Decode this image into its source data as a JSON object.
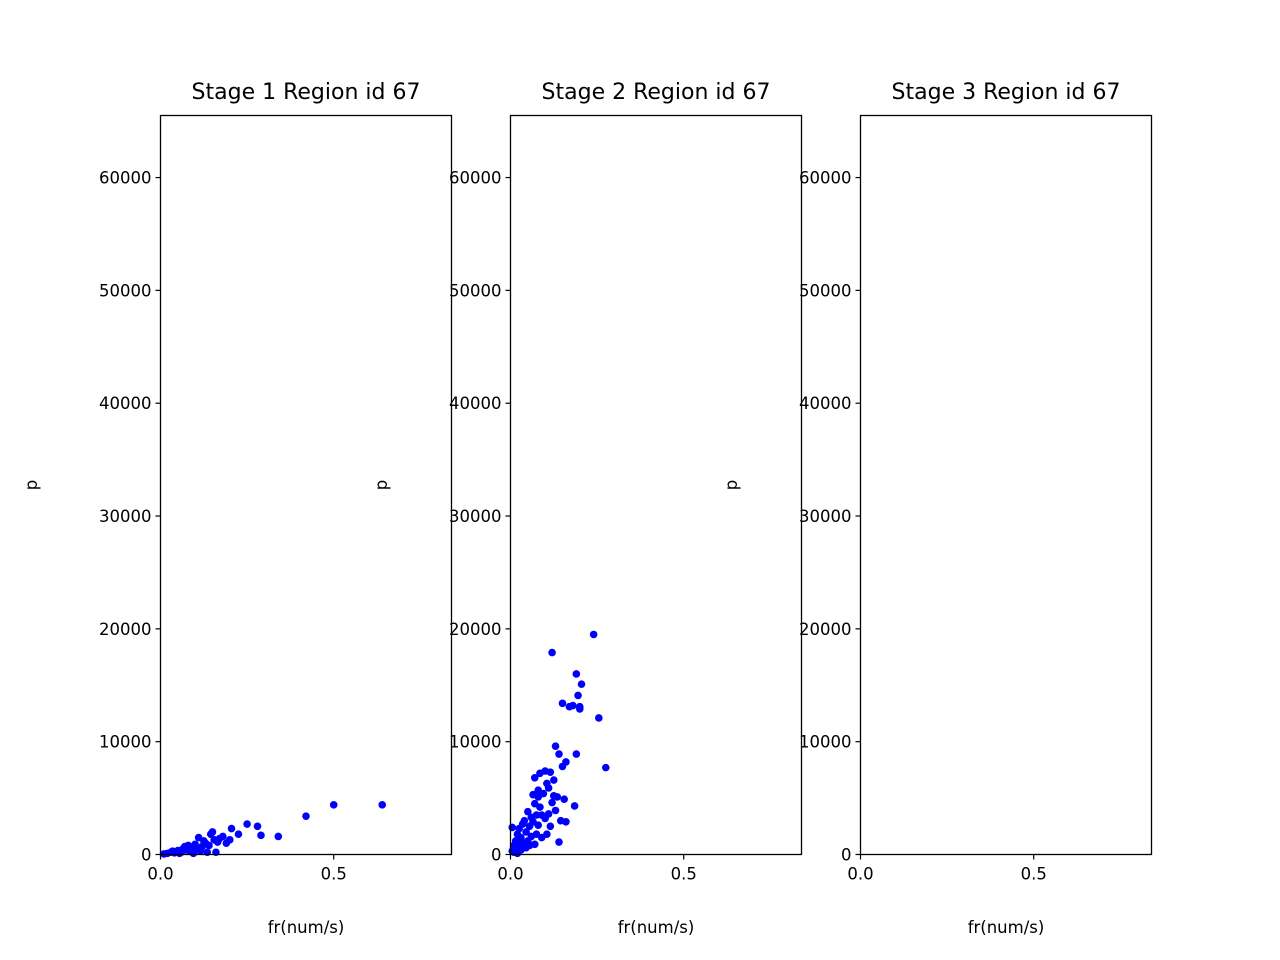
{
  "chart_data": [
    {
      "type": "scatter",
      "title": "Stage 1 Region id 67",
      "xlabel": "fr(num/s)",
      "ylabel": "p",
      "xlim": [
        0,
        0.84
      ],
      "ylim": [
        0,
        65500
      ],
      "xticks": [
        "0.0",
        "0.5"
      ],
      "yticks": [
        "0",
        "10000",
        "20000",
        "30000",
        "40000",
        "50000",
        "60000"
      ],
      "xtick_values": [
        0.0,
        0.5
      ],
      "ytick_values": [
        0,
        10000,
        20000,
        30000,
        40000,
        50000,
        60000
      ],
      "grid": false,
      "marker_color": "#0000ff",
      "points": [
        [
          0.01,
          50
        ],
        [
          0.02,
          100
        ],
        [
          0.03,
          200
        ],
        [
          0.035,
          300
        ],
        [
          0.04,
          150
        ],
        [
          0.045,
          250
        ],
        [
          0.05,
          350
        ],
        [
          0.055,
          100
        ],
        [
          0.06,
          200
        ],
        [
          0.065,
          500
        ],
        [
          0.07,
          700
        ],
        [
          0.075,
          400
        ],
        [
          0.08,
          800
        ],
        [
          0.085,
          300
        ],
        [
          0.09,
          600
        ],
        [
          0.095,
          100
        ],
        [
          0.1,
          900
        ],
        [
          0.105,
          500
        ],
        [
          0.11,
          1500
        ],
        [
          0.115,
          300
        ],
        [
          0.12,
          700
        ],
        [
          0.125,
          1200
        ],
        [
          0.13,
          1000
        ],
        [
          0.135,
          200
        ],
        [
          0.14,
          800
        ],
        [
          0.145,
          1800
        ],
        [
          0.15,
          2000
        ],
        [
          0.155,
          1300
        ],
        [
          0.16,
          200
        ],
        [
          0.165,
          1100
        ],
        [
          0.17,
          1400
        ],
        [
          0.18,
          1600
        ],
        [
          0.19,
          1000
        ],
        [
          0.2,
          1300
        ],
        [
          0.205,
          2300
        ],
        [
          0.225,
          1800
        ],
        [
          0.25,
          2700
        ],
        [
          0.28,
          2500
        ],
        [
          0.29,
          1700
        ],
        [
          0.34,
          1600
        ],
        [
          0.42,
          3400
        ],
        [
          0.5,
          4400
        ],
        [
          0.64,
          4400
        ]
      ]
    },
    {
      "type": "scatter",
      "title": "Stage 2 Region id 67",
      "xlabel": "fr(num/s)",
      "ylabel": "p",
      "xlim": [
        0,
        0.84
      ],
      "ylim": [
        0,
        65500
      ],
      "xticks": [
        "0.0",
        "0.5"
      ],
      "yticks": [
        "0",
        "10000",
        "20000",
        "30000",
        "40000",
        "50000",
        "60000"
      ],
      "xtick_values": [
        0.0,
        0.5
      ],
      "ytick_values": [
        0,
        10000,
        20000,
        30000,
        40000,
        50000,
        60000
      ],
      "grid": false,
      "marker_color": "#0000ff",
      "points": [
        [
          0.005,
          2400
        ],
        [
          0.005,
          300
        ],
        [
          0.01,
          800
        ],
        [
          0.01,
          200
        ],
        [
          0.015,
          1200
        ],
        [
          0.015,
          500
        ],
        [
          0.02,
          1800
        ],
        [
          0.02,
          100
        ],
        [
          0.025,
          900
        ],
        [
          0.025,
          2300
        ],
        [
          0.03,
          1500
        ],
        [
          0.03,
          400
        ],
        [
          0.035,
          2700
        ],
        [
          0.035,
          700
        ],
        [
          0.04,
          1000
        ],
        [
          0.04,
          3000
        ],
        [
          0.045,
          2000
        ],
        [
          0.045,
          600
        ],
        [
          0.05,
          3800
        ],
        [
          0.05,
          1200
        ],
        [
          0.055,
          2500
        ],
        [
          0.055,
          800
        ],
        [
          0.06,
          3300
        ],
        [
          0.06,
          1600
        ],
        [
          0.065,
          2900
        ],
        [
          0.065,
          5300
        ],
        [
          0.07,
          4500
        ],
        [
          0.07,
          900
        ],
        [
          0.07,
          6800
        ],
        [
          0.075,
          3500
        ],
        [
          0.075,
          1800
        ],
        [
          0.08,
          5100
        ],
        [
          0.08,
          5700
        ],
        [
          0.08,
          2600
        ],
        [
          0.085,
          4200
        ],
        [
          0.085,
          7200
        ],
        [
          0.09,
          3500
        ],
        [
          0.09,
          1500
        ],
        [
          0.095,
          5400
        ],
        [
          0.1,
          3200
        ],
        [
          0.1,
          7400
        ],
        [
          0.105,
          1800
        ],
        [
          0.105,
          6300
        ],
        [
          0.11,
          5900
        ],
        [
          0.11,
          3600
        ],
        [
          0.115,
          7300
        ],
        [
          0.115,
          2500
        ],
        [
          0.12,
          4600
        ],
        [
          0.12,
          17900
        ],
        [
          0.125,
          5200
        ],
        [
          0.125,
          6600
        ],
        [
          0.13,
          9600
        ],
        [
          0.13,
          3900
        ],
        [
          0.135,
          5100
        ],
        [
          0.14,
          1100
        ],
        [
          0.14,
          8900
        ],
        [
          0.145,
          3000
        ],
        [
          0.15,
          7800
        ],
        [
          0.15,
          13400
        ],
        [
          0.155,
          4900
        ],
        [
          0.16,
          8200
        ],
        [
          0.16,
          2900
        ],
        [
          0.17,
          13100
        ],
        [
          0.18,
          13200
        ],
        [
          0.185,
          4300
        ],
        [
          0.19,
          16000
        ],
        [
          0.19,
          8900
        ],
        [
          0.195,
          14100
        ],
        [
          0.2,
          13100
        ],
        [
          0.2,
          12900
        ],
        [
          0.205,
          15100
        ],
        [
          0.24,
          19500
        ],
        [
          0.255,
          12100
        ],
        [
          0.275,
          7700
        ]
      ]
    },
    {
      "type": "scatter",
      "title": "Stage 3 Region id 67",
      "xlabel": "fr(num/s)",
      "ylabel": "p",
      "xlim": [
        0,
        0.84
      ],
      "ylim": [
        0,
        65500
      ],
      "xticks": [
        "0.0",
        "0.5"
      ],
      "yticks": [
        "0",
        "10000",
        "20000",
        "30000",
        "40000",
        "50000",
        "60000"
      ],
      "xtick_values": [
        0.0,
        0.5
      ],
      "ytick_values": [
        0,
        10000,
        20000,
        30000,
        40000,
        50000,
        60000
      ],
      "grid": false,
      "marker_color": "#0000ff",
      "points": []
    }
  ]
}
